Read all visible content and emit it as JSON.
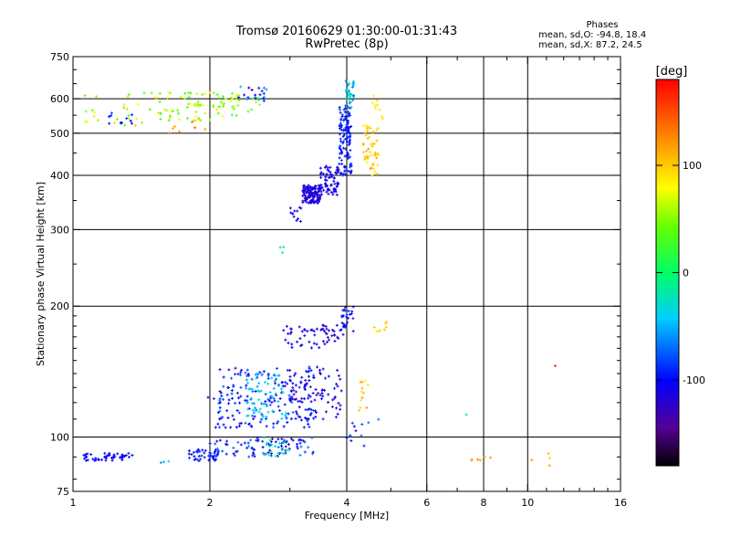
{
  "title": {
    "line1": "Tromsø 20160629 01:30:00-01:31:43",
    "line2": "RwPretec (8p)"
  },
  "phase_info": {
    "heading": "Phases",
    "line1": "mean, sd,O: -94.8, 18.4",
    "line2": "mean, sd,X:  87.2, 24.5"
  },
  "colorbar": {
    "title": "[deg]",
    "ticks": [
      {
        "label": "100",
        "value": 100
      },
      {
        "label": "0",
        "value": 0
      },
      {
        "label": "-100",
        "value": -100
      }
    ],
    "range": [
      -180,
      180
    ]
  },
  "chart_data": {
    "type": "scatter",
    "xlabel": "Frequency [MHz]",
    "ylabel": "Stationary phase Virtual Height [km]",
    "x_scale": "log",
    "y_scale": "log",
    "xlim": [
      1,
      16
    ],
    "ylim": [
      75,
      750
    ],
    "x_ticks": [
      {
        "label": "1",
        "value": 1
      },
      {
        "label": "2",
        "value": 2
      },
      {
        "label": "4",
        "value": 4
      },
      {
        "label": "6",
        "value": 6
      },
      {
        "label": "8",
        "value": 8
      },
      {
        "label": "10",
        "value": 10
      },
      {
        "label": "16",
        "value": 16
      }
    ],
    "x_minor_ticks": [
      3,
      5,
      7,
      9,
      11,
      12,
      13,
      14,
      15
    ],
    "x_grid": [
      2,
      4,
      6,
      8,
      10
    ],
    "y_ticks": [
      {
        "label": "75",
        "value": 75
      },
      {
        "label": "100",
        "value": 100
      },
      {
        "label": "200",
        "value": 200
      },
      {
        "label": "300",
        "value": 300
      },
      {
        "label": "400",
        "value": 400
      },
      {
        "label": "500",
        "value": 500
      },
      {
        "label": "600",
        "value": 600
      },
      {
        "label": "750",
        "value": 750
      }
    ],
    "y_grid": [
      100,
      200,
      300,
      400,
      500,
      600
    ],
    "grid": true,
    "clusters": [
      {
        "f": [
          1.05,
          1.35
        ],
        "h": [
          88,
          92
        ],
        "phase": [
          -110,
          -95
        ],
        "n": 45
      },
      {
        "f": [
          1.55,
          1.65
        ],
        "h": [
          86,
          90
        ],
        "phase": [
          -60,
          -30
        ],
        "n": 3
      },
      {
        "f": [
          1.8,
          2.1
        ],
        "h": [
          88,
          94
        ],
        "phase": [
          -120,
          -80
        ],
        "n": 40
      },
      {
        "f": [
          2.0,
          3.4
        ],
        "h": [
          90,
          100
        ],
        "phase": [
          -130,
          -60
        ],
        "n": 90
      },
      {
        "f": [
          2.6,
          3.0
        ],
        "h": [
          90,
          100
        ],
        "phase": [
          -40,
          10
        ],
        "n": 20
      },
      {
        "f": [
          1.9,
          2.2
        ],
        "h": [
          98,
          125
        ],
        "phase": [
          -120,
          -80
        ],
        "n": 15
      },
      {
        "f": [
          2.1,
          3.4
        ],
        "h": [
          105,
          145
        ],
        "phase": [
          -120,
          -70
        ],
        "n": 170
      },
      {
        "f": [
          2.4,
          3.0
        ],
        "h": [
          110,
          140
        ],
        "phase": [
          -60,
          -30
        ],
        "n": 60
      },
      {
        "f": [
          3.0,
          3.9
        ],
        "h": [
          110,
          145
        ],
        "phase": [
          -140,
          -90
        ],
        "n": 80
      },
      {
        "f": [
          2.8,
          3.6
        ],
        "h": [
          160,
          180
        ],
        "phase": [
          -120,
          -100
        ],
        "n": 35
      },
      {
        "f": [
          3.5,
          4.0
        ],
        "h": [
          165,
          182
        ],
        "phase": [
          -130,
          -100
        ],
        "n": 25
      },
      {
        "f": [
          3.9,
          4.15
        ],
        "h": [
          175,
          200
        ],
        "phase": [
          -120,
          -80
        ],
        "n": 25
      },
      {
        "f": [
          4.2,
          4.6
        ],
        "h": [
          115,
          135
        ],
        "phase": [
          80,
          120
        ],
        "n": 12
      },
      {
        "f": [
          4.5,
          4.9
        ],
        "h": [
          175,
          185
        ],
        "phase": [
          80,
          110
        ],
        "n": 8
      },
      {
        "f": [
          4.0,
          4.7
        ],
        "h": [
          95,
          110
        ],
        "phase": [
          -110,
          -60
        ],
        "n": 12
      },
      {
        "f": [
          3.2,
          3.5
        ],
        "h": [
          345,
          380
        ],
        "phase": [
          -130,
          -100
        ],
        "n": 120
      },
      {
        "f": [
          3.0,
          3.2
        ],
        "h": [
          310,
          350
        ],
        "phase": [
          -120,
          -90
        ],
        "n": 12
      },
      {
        "f": [
          3.5,
          3.85
        ],
        "h": [
          360,
          420
        ],
        "phase": [
          -120,
          -100
        ],
        "n": 70
      },
      {
        "f": [
          3.85,
          4.1
        ],
        "h": [
          400,
          580
        ],
        "phase": [
          -110,
          -80
        ],
        "n": 110
      },
      {
        "f": [
          3.95,
          4.15
        ],
        "h": [
          570,
          660
        ],
        "phase": [
          -80,
          0
        ],
        "n": 35
      },
      {
        "f": [
          2.85,
          2.95
        ],
        "h": [
          265,
          280
        ],
        "phase": [
          -20,
          0
        ],
        "n": 3
      },
      {
        "f": [
          4.35,
          4.7
        ],
        "h": [
          395,
          520
        ],
        "phase": [
          80,
          120
        ],
        "n": 55
      },
      {
        "f": [
          4.5,
          4.8
        ],
        "h": [
          540,
          620
        ],
        "phase": [
          70,
          110
        ],
        "n": 10
      },
      {
        "f": [
          1.05,
          1.6
        ],
        "h": [
          520,
          620
        ],
        "phase": [
          30,
          100
        ],
        "n": 30
      },
      {
        "f": [
          1.2,
          1.35
        ],
        "h": [
          525,
          560
        ],
        "phase": [
          -120,
          -80
        ],
        "n": 10
      },
      {
        "f": [
          1.55,
          2.3
        ],
        "h": [
          530,
          620
        ],
        "phase": [
          20,
          90
        ],
        "n": 70
      },
      {
        "f": [
          1.6,
          2.0
        ],
        "h": [
          500,
          540
        ],
        "phase": [
          100,
          140
        ],
        "n": 10
      },
      {
        "f": [
          2.3,
          2.8
        ],
        "h": [
          590,
          640
        ],
        "phase": [
          -120,
          -40
        ],
        "n": 20
      },
      {
        "f": [
          2.0,
          2.6
        ],
        "h": [
          560,
          620
        ],
        "phase": [
          20,
          60
        ],
        "n": 15
      },
      {
        "f": [
          7.3,
          7.5
        ],
        "h": [
          112,
          115
        ],
        "phase": [
          -40,
          -20
        ],
        "n": 1
      },
      {
        "f": [
          7.4,
          8.4
        ],
        "h": [
          88,
          90
        ],
        "phase": [
          100,
          130
        ],
        "n": 6
      },
      {
        "f": [
          10.2,
          11.2
        ],
        "h": [
          85,
          94
        ],
        "phase": [
          90,
          130
        ],
        "n": 4
      },
      {
        "f": [
          11.4,
          11.8
        ],
        "h": [
          142,
          146
        ],
        "phase": [
          150,
          170
        ],
        "n": 1
      }
    ]
  }
}
